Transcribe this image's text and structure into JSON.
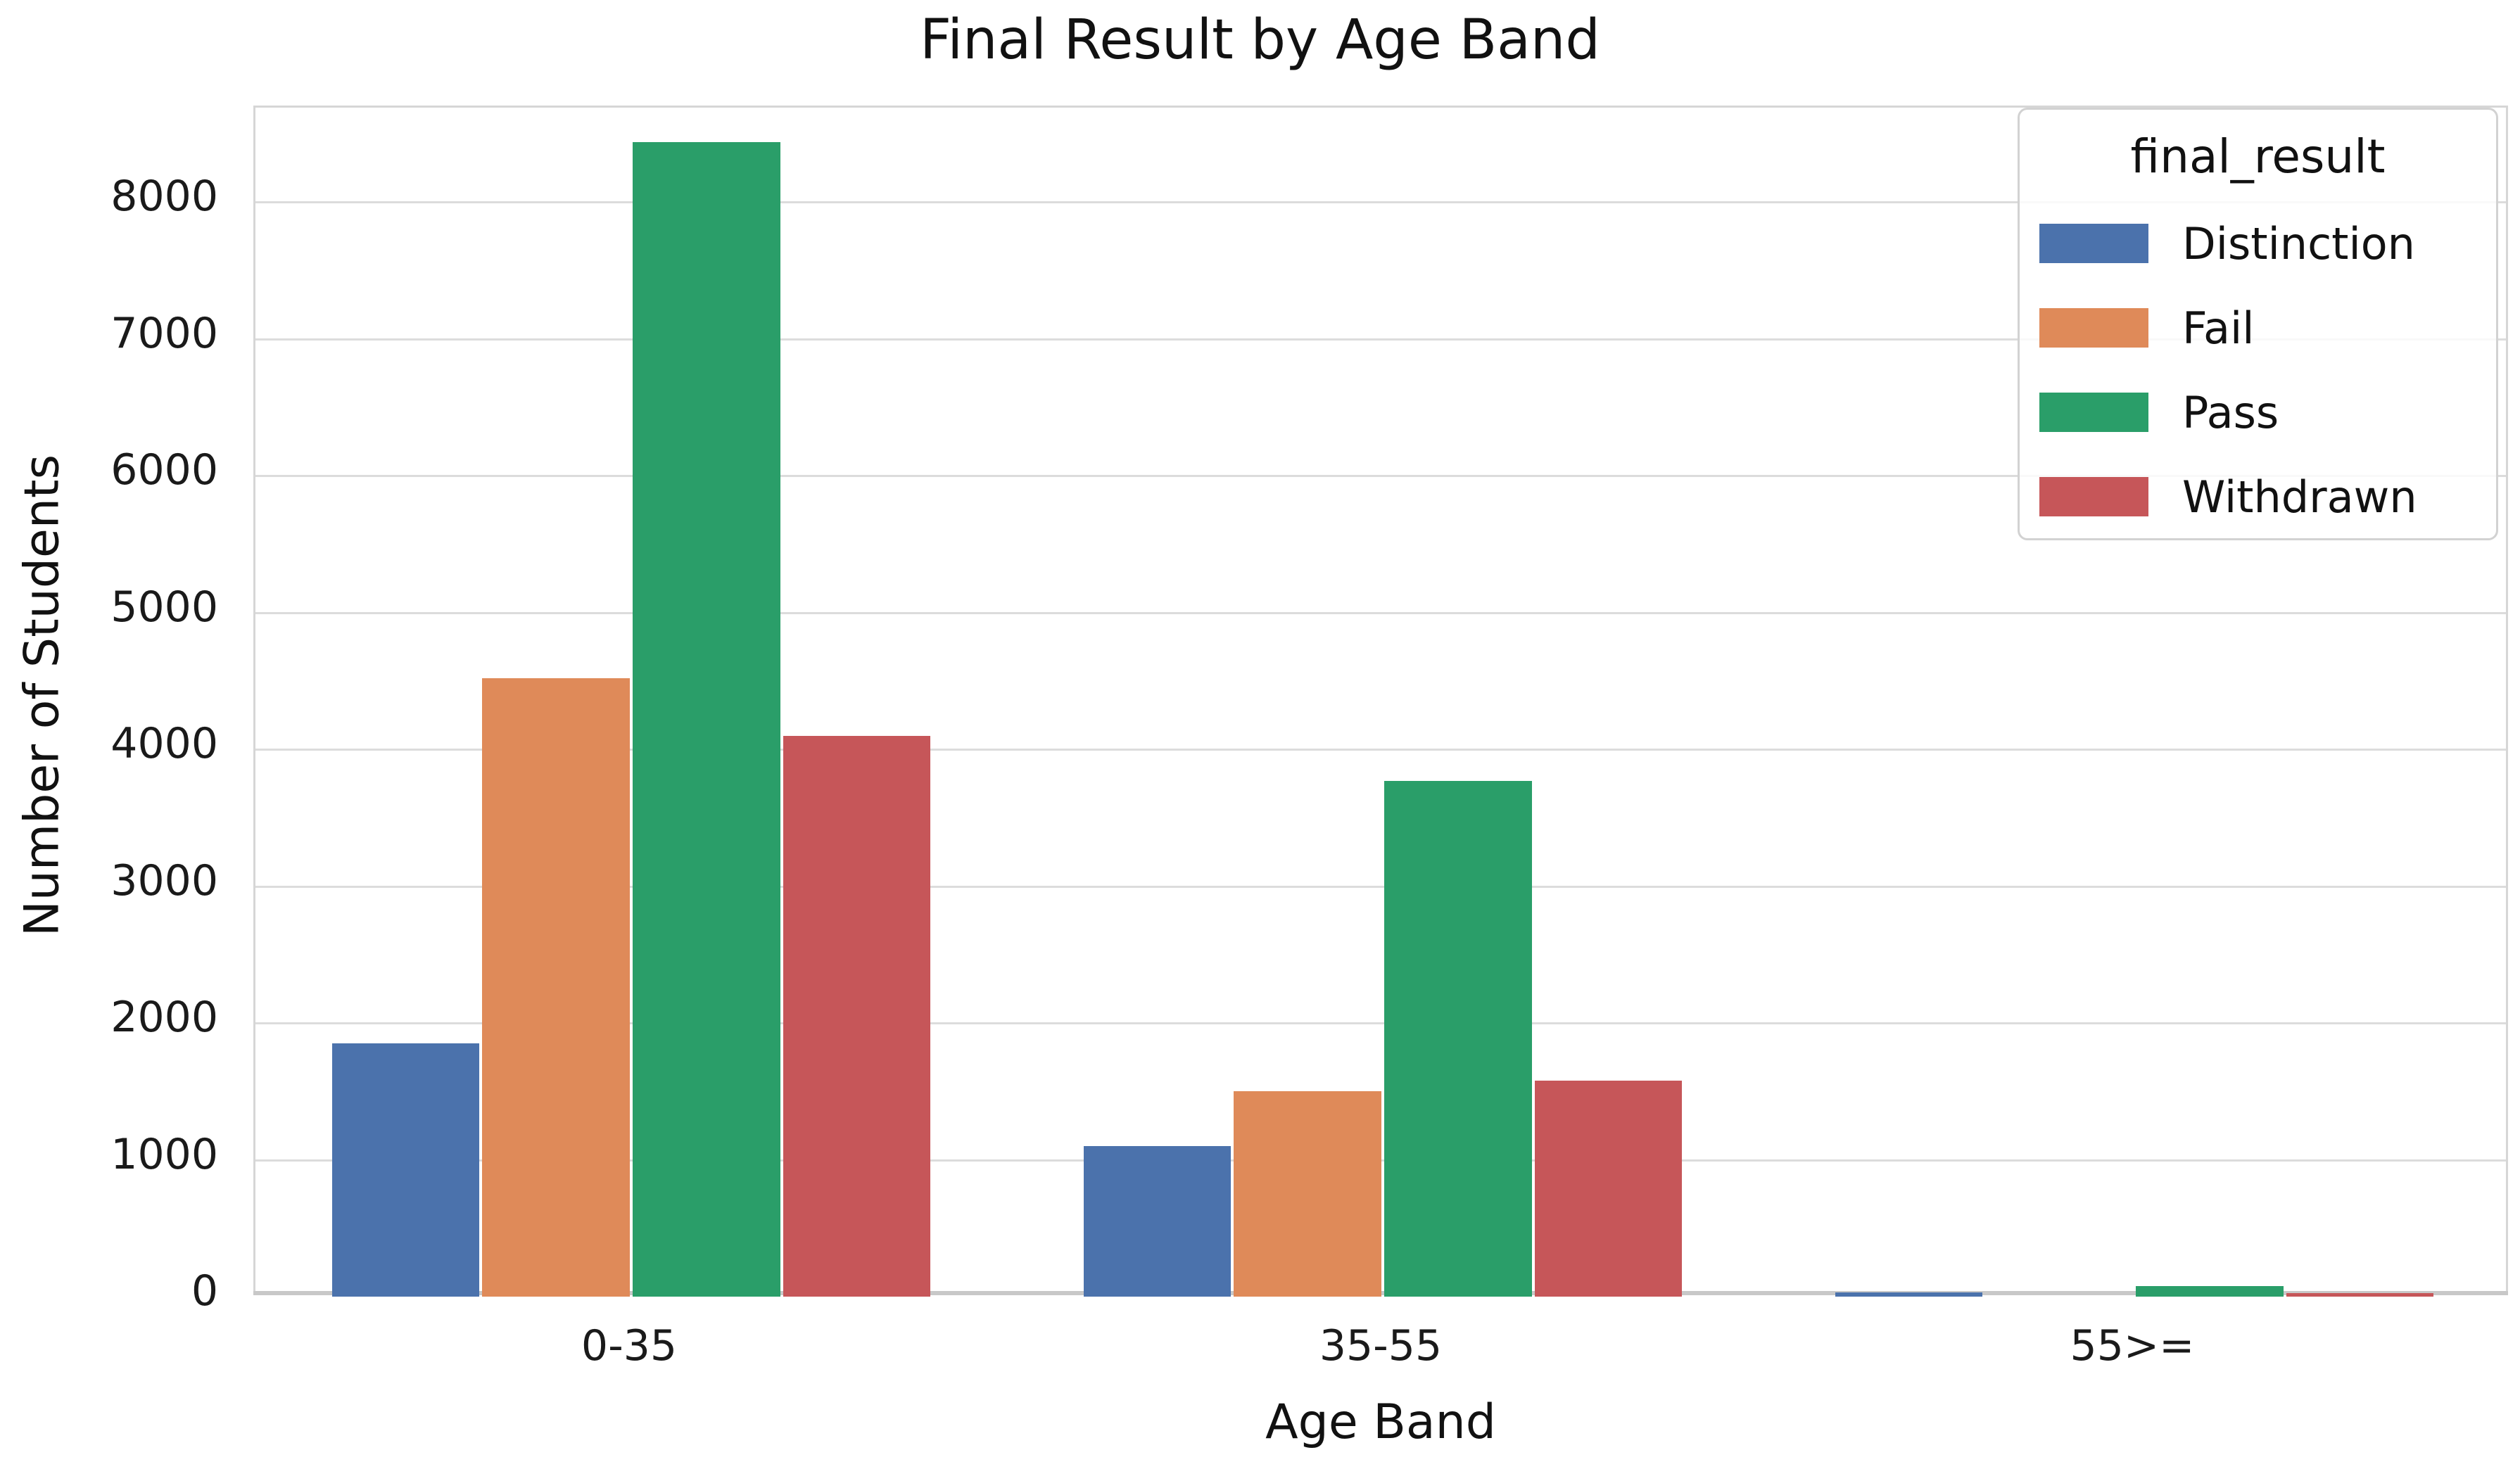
{
  "title": "Final Result by Age Band",
  "legend": {
    "title": "final_result"
  },
  "axes": {
    "x_label": "Age Band",
    "y_label": "Number of Students"
  },
  "chart_data": {
    "type": "bar",
    "title": "Final Result by Age Band",
    "xlabel": "Age Band",
    "ylabel": "Number of Students",
    "categories": [
      "0-35",
      "35-55",
      "55>="
    ],
    "series": [
      {
        "name": "Distinction",
        "color": "#4B72AC",
        "values": [
          1850,
          1100,
          30
        ]
      },
      {
        "name": "Fail",
        "color": "#DF8A59",
        "values": [
          4520,
          1500,
          0
        ]
      },
      {
        "name": "Pass",
        "color": "#2A9E69",
        "values": [
          8440,
          3770,
          75
        ]
      },
      {
        "name": "Withdrawn",
        "color": "#C65659",
        "values": [
          4100,
          1580,
          25
        ]
      }
    ],
    "ylim": [
      0,
      8690
    ],
    "yticks": [
      0,
      1000,
      2000,
      3000,
      4000,
      5000,
      6000,
      7000,
      8000
    ],
    "grid": "horizontal",
    "legend_position": "upper right",
    "group_inner_fraction": 0.8
  }
}
